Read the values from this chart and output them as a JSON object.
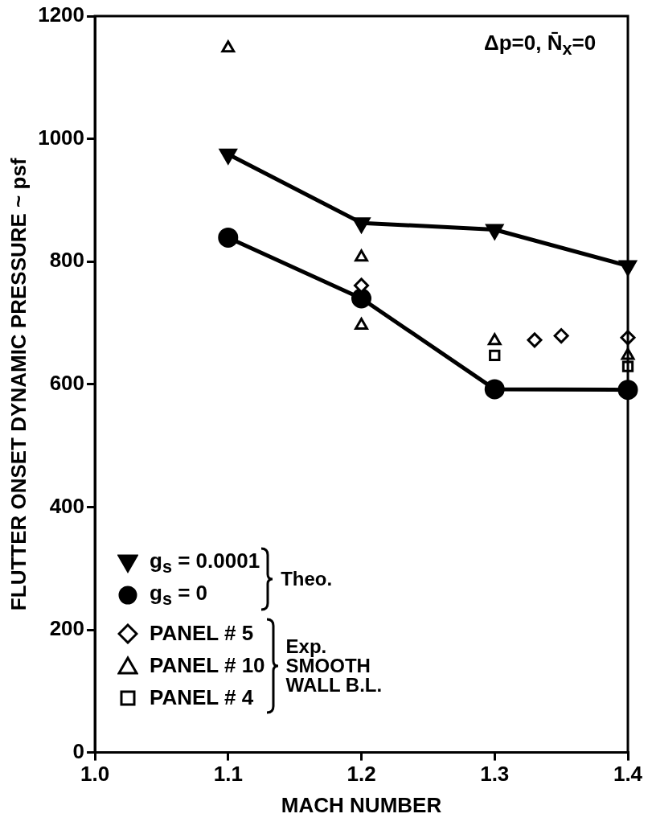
{
  "chart_data": {
    "type": "scatter",
    "xlabel": "MACH NUMBER",
    "ylabel": "FLUTTER ONSET DYNAMIC PRESSURE ~ psf",
    "annotations": [
      "Δp=0, N̄$_{x}$=0",
      "Theo.",
      "Exp. SMOOTH WALL B.L."
    ],
    "xlim": [
      1.0,
      1.4
    ],
    "xticks": [
      {
        "value": 1.0,
        "label": "1.0"
      },
      1.1,
      1.2,
      1.3,
      1.4
    ],
    "ylim": [
      0,
      1200
    ],
    "yticks": [
      0,
      200,
      400,
      600,
      800,
      1000,
      1200
    ],
    "grid": false,
    "legend": "bottom left",
    "series": [
      {
        "type": "line",
        "name": "g$_{s}$ = 0.0001",
        "color": "#000000",
        "marker": "triangle",
        "x": [
          1.1,
          1.2,
          1.3,
          1.4
        ],
        "values": [
          975,
          863,
          852,
          793
        ]
      },
      {
        "type": "line",
        "name": "g$_{s}$ = 0",
        "color": "#000000",
        "marker": "circle",
        "x": [
          1.1,
          1.2,
          1.3,
          1.4
        ],
        "values": [
          839,
          740,
          592,
          591
        ]
      },
      {
        "name": "PANEL # 5",
        "color": "#000000",
        "marker": "diamond",
        "x": [
          1.2,
          1.33,
          1.35,
          1.4
        ],
        "values": [
          761,
          672,
          679,
          676
        ]
      },
      {
        "name": "PANEL # 10",
        "color": "#000000",
        "marker": "triangle",
        "x": [
          1.1,
          1.2,
          1.2,
          1.3,
          1.4
        ],
        "values": [
          1148,
          807,
          696,
          671,
          647
        ]
      },
      {
        "name": "PANEL # 4",
        "color": "#000000",
        "marker": "square",
        "x": [
          1.3,
          1.4
        ],
        "values": [
          647,
          629
        ]
      }
    ]
  }
}
